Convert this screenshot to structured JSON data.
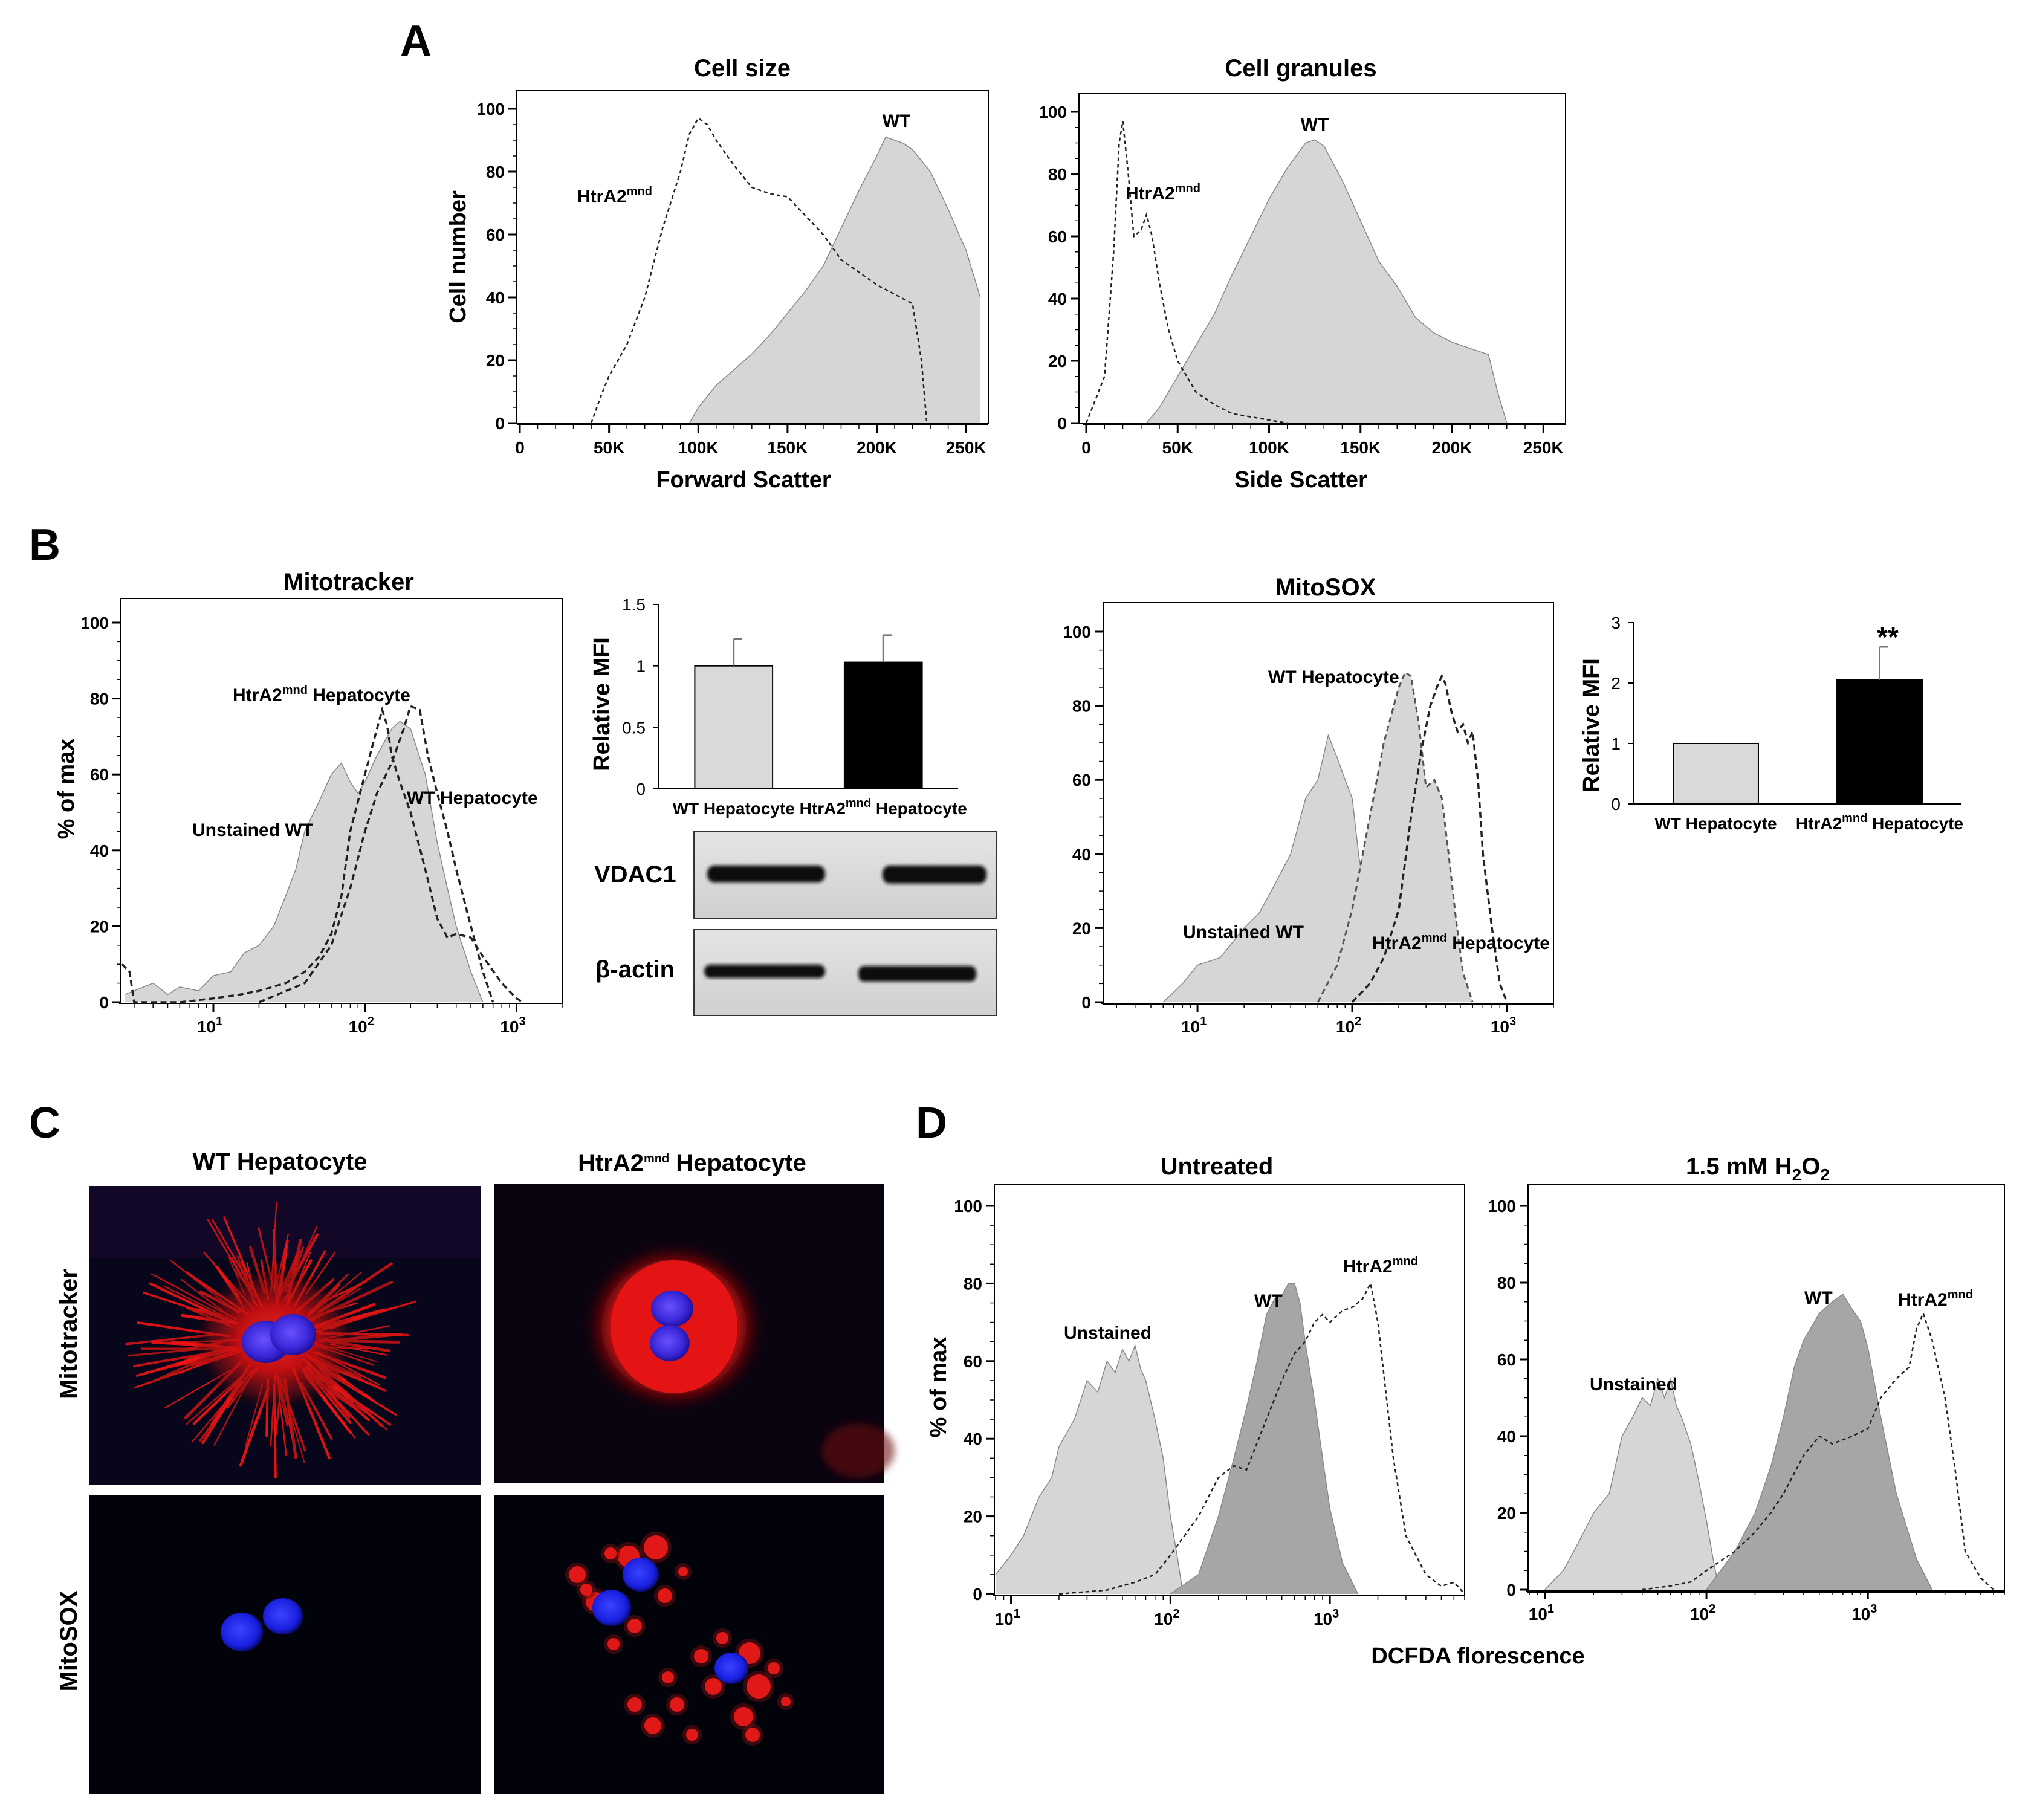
{
  "panels": {
    "A": {
      "letter": "A"
    },
    "B": {
      "letter": "B"
    },
    "C": {
      "letter": "C"
    },
    "D": {
      "letter": "D"
    }
  },
  "colors": {
    "fill_light": "#d6d6d6",
    "fill_dark": "#a6a6a6",
    "line": "#222222",
    "cell_red": "#e01010",
    "nucleus_blue": "#4030d8",
    "bar_wt": "#d9d9d9",
    "bar_ko": "#000000"
  },
  "chart_data": [
    {
      "id": "cell-size",
      "type": "area",
      "title": "Cell size",
      "xlabel": "Forward Scatter",
      "ylabel": "Cell number",
      "xlim": [
        0,
        262144
      ],
      "ylim": [
        0,
        100
      ],
      "xticks": [
        0,
        50000,
        100000,
        150000,
        200000,
        250000
      ],
      "xtick_labels": [
        "0",
        "50K",
        "100K",
        "150K",
        "200K",
        "250K"
      ],
      "yticks": [
        0,
        20,
        40,
        60,
        80,
        100
      ],
      "label_wt": "WT",
      "label_ko": "HtrA2",
      "label_ko_sup": "mnd",
      "series": [
        {
          "name": "WT",
          "style": "filled",
          "x": [
            95000,
            100000,
            110000,
            120000,
            130000,
            140000,
            150000,
            160000,
            170000,
            180000,
            190000,
            200000,
            205000,
            210000,
            215000,
            220000,
            230000,
            240000,
            250000,
            258000
          ],
          "y": [
            0,
            5,
            12,
            17,
            22,
            28,
            35,
            42,
            50,
            62,
            74,
            85,
            91,
            90,
            89,
            87,
            80,
            68,
            55,
            40
          ]
        },
        {
          "name": "HtrA2mnd",
          "style": "dashed",
          "x": [
            40000,
            45000,
            50000,
            60000,
            70000,
            80000,
            90000,
            95000,
            100000,
            105000,
            110000,
            120000,
            130000,
            140000,
            150000,
            160000,
            170000,
            180000,
            190000,
            200000,
            210000,
            220000,
            225000,
            228000
          ],
          "y": [
            0,
            8,
            15,
            25,
            40,
            62,
            80,
            92,
            97,
            95,
            90,
            82,
            75,
            73,
            72,
            66,
            60,
            52,
            48,
            44,
            41,
            38,
            20,
            0
          ]
        }
      ]
    },
    {
      "id": "cell-granules",
      "type": "area",
      "title": "Cell granules",
      "xlabel": "Side Scatter",
      "ylabel": "",
      "xlim": [
        0,
        262144
      ],
      "ylim": [
        0,
        100
      ],
      "xticks": [
        0,
        50000,
        100000,
        150000,
        200000,
        250000
      ],
      "xtick_labels": [
        "0",
        "50K",
        "100K",
        "150K",
        "200K",
        "250K"
      ],
      "yticks": [
        0,
        20,
        40,
        60,
        80,
        100
      ],
      "label_wt": "WT",
      "label_ko": "HtrA2",
      "label_ko_sup": "mnd",
      "series": [
        {
          "name": "WT",
          "style": "filled",
          "x": [
            33000,
            40000,
            50000,
            60000,
            70000,
            80000,
            90000,
            100000,
            110000,
            120000,
            125000,
            130000,
            140000,
            150000,
            160000,
            170000,
            180000,
            190000,
            200000,
            210000,
            220000,
            225000,
            230000
          ],
          "y": [
            0,
            5,
            15,
            25,
            35,
            48,
            60,
            72,
            82,
            90,
            91,
            89,
            78,
            65,
            52,
            44,
            34,
            29,
            26,
            24,
            22,
            10,
            0
          ]
        },
        {
          "name": "HtrA2mnd",
          "style": "dashed",
          "x": [
            0,
            10000,
            15000,
            18000,
            20000,
            23000,
            26000,
            30000,
            33000,
            36000,
            40000,
            45000,
            50000,
            55000,
            60000,
            70000,
            80000,
            90000,
            100000,
            110000
          ],
          "y": [
            0,
            15,
            55,
            90,
            97,
            80,
            60,
            62,
            67,
            60,
            45,
            30,
            20,
            15,
            10,
            6,
            3,
            2,
            1,
            0
          ]
        }
      ]
    },
    {
      "id": "mitotracker",
      "type": "area",
      "title": "Mitotracker",
      "ylabel": "% of max",
      "xscale": "log",
      "xlim": [
        2.5,
        2000
      ],
      "ylim": [
        0,
        100
      ],
      "xticks": [
        10,
        100,
        1000
      ],
      "yticks": [
        0,
        20,
        40,
        60,
        80,
        100
      ],
      "label_unstained": "Unstained WT",
      "label_wt": "WT Hepatocyte",
      "label_ko_a": "HtrA2",
      "label_ko_sup": "mnd",
      "label_ko_b": " Hepatocyte",
      "series": [
        {
          "name": "Unstained WT",
          "style": "filled",
          "x": [
            2.6,
            3,
            4,
            5,
            6,
            8,
            10,
            13,
            16,
            20,
            25,
            30,
            35,
            40,
            50,
            60,
            70,
            80,
            90,
            100,
            120,
            150,
            170,
            200,
            250,
            300,
            350,
            400,
            500,
            600
          ],
          "y": [
            2,
            3,
            5,
            2,
            4,
            3,
            7,
            8,
            13,
            15,
            20,
            28,
            35,
            45,
            53,
            60,
            63,
            58,
            55,
            58,
            65,
            72,
            74,
            72,
            60,
            42,
            30,
            20,
            8,
            0
          ]
        },
        {
          "name": "WT Hepatocyte",
          "style": "dashed",
          "x": [
            20,
            40,
            60,
            80,
            100,
            120,
            150,
            180,
            200,
            230,
            260,
            300,
            350,
            400,
            500,
            600,
            700
          ],
          "y": [
            0,
            5,
            15,
            30,
            45,
            55,
            63,
            72,
            78,
            77,
            65,
            55,
            45,
            35,
            20,
            8,
            0
          ]
        },
        {
          "name": "HtrA2mnd Hepatocyte",
          "style": "dashed",
          "x": [
            2.5,
            2.8,
            3,
            4,
            6,
            10,
            15,
            20,
            30,
            40,
            50,
            60,
            70,
            80,
            100,
            120,
            130,
            140,
            150,
            170,
            200,
            250,
            300,
            350,
            400,
            500,
            600,
            800,
            1000,
            1100
          ],
          "y": [
            10,
            8,
            0,
            0,
            0,
            1,
            2,
            3,
            5,
            8,
            12,
            18,
            28,
            45,
            60,
            72,
            77,
            73,
            65,
            58,
            50,
            35,
            22,
            17,
            18,
            17,
            12,
            5,
            1,
            0
          ]
        }
      ]
    },
    {
      "id": "mitotracker-mfi",
      "type": "bar",
      "ylabel": "Relative MFI",
      "ylim": [
        0,
        1.5
      ],
      "yticks": [
        0,
        0.5,
        1,
        1.5
      ],
      "ytick_labels": [
        "0",
        "0.5",
        "1",
        "1.5"
      ],
      "categories": [
        "WT Hepatocyte",
        "HtrA2mnd Hepatocyte"
      ],
      "category_labels": [
        {
          "a": "WT Hepatocyte",
          "sup": "",
          "b": ""
        },
        {
          "a": "HtrA2",
          "sup": "mnd",
          "b": " Hepatocyte"
        }
      ],
      "values": [
        1.0,
        1.03
      ],
      "errors": [
        0.22,
        0.22
      ]
    },
    {
      "id": "mitosox",
      "type": "area",
      "title": "MitoSOX",
      "xscale": "log",
      "xlim": [
        2.5,
        2000
      ],
      "ylim": [
        0,
        100
      ],
      "xticks": [
        10,
        100,
        1000
      ],
      "yticks": [
        0,
        20,
        40,
        60,
        80,
        100
      ],
      "label_unstained": "Unstained WT",
      "label_wt": "WT Hepatocyte",
      "label_ko_a": "HtrA2",
      "label_ko_sup": "mnd",
      "label_ko_b": " Hepatocyte",
      "series": [
        {
          "name": "Unstained WT",
          "style": "filled",
          "x": [
            6,
            8,
            10,
            14,
            20,
            25,
            30,
            40,
            50,
            60,
            70,
            80,
            90,
            100,
            110,
            130,
            150,
            160
          ],
          "y": [
            0,
            5,
            10,
            12,
            20,
            24,
            30,
            40,
            55,
            60,
            72,
            66,
            60,
            55,
            40,
            20,
            5,
            0
          ]
        },
        {
          "name": "WT Hepatocyte",
          "style": "filled-dashed",
          "x": [
            60,
            80,
            100,
            130,
            160,
            200,
            220,
            240,
            270,
            300,
            340,
            380,
            420,
            470,
            520,
            600
          ],
          "y": [
            0,
            10,
            25,
            50,
            70,
            85,
            89,
            88,
            75,
            58,
            60,
            55,
            40,
            22,
            8,
            0
          ]
        },
        {
          "name": "HtrA2mnd Hepatocyte",
          "style": "dashed",
          "x": [
            100,
            130,
            160,
            200,
            240,
            280,
            320,
            360,
            380,
            400,
            440,
            480,
            520,
            560,
            600,
            650,
            700,
            800,
            900,
            1000
          ],
          "y": [
            0,
            5,
            12,
            25,
            50,
            68,
            80,
            86,
            88,
            86,
            78,
            73,
            75,
            70,
            73,
            60,
            40,
            20,
            5,
            0
          ]
        }
      ]
    },
    {
      "id": "mitosox-mfi",
      "type": "bar",
      "ylabel": "Relative MFI",
      "ylim": [
        0,
        3
      ],
      "yticks": [
        0,
        1,
        2,
        3
      ],
      "ytick_labels": [
        "0",
        "1",
        "2",
        "3"
      ],
      "categories": [
        "WT Hepatocyte",
        "HtrA2mnd Hepatocyte"
      ],
      "category_labels": [
        {
          "a": "WT Hepatocyte",
          "sup": "",
          "b": ""
        },
        {
          "a": "HtrA2",
          "sup": "mnd",
          "b": " Hepatocyte"
        }
      ],
      "values": [
        1.0,
        2.05
      ],
      "errors": [
        0,
        0.55
      ],
      "annotation": "**"
    },
    {
      "id": "dcfda-untreated",
      "type": "area",
      "title": "Untreated",
      "ylabel": "% of max",
      "xscale": "log",
      "xlim": [
        8,
        7000
      ],
      "ylim": [
        0,
        100
      ],
      "xticks": [
        10,
        100,
        1000
      ],
      "yticks": [
        0,
        20,
        40,
        60,
        80,
        100
      ],
      "label_unstained": "Unstained",
      "label_wt": "WT",
      "label_ko": "HtrA2",
      "label_ko_sup": "mnd",
      "series": [
        {
          "name": "Unstained",
          "style": "filled-light",
          "x": [
            8,
            10,
            12,
            15,
            18,
            20,
            25,
            30,
            35,
            40,
            45,
            50,
            55,
            60,
            65,
            70,
            80,
            90,
            100,
            110,
            120
          ],
          "y": [
            5,
            10,
            15,
            25,
            30,
            38,
            45,
            55,
            52,
            60,
            57,
            63,
            60,
            64,
            58,
            55,
            45,
            35,
            20,
            10,
            0
          ]
        },
        {
          "name": "WT",
          "style": "filled-dark",
          "x": [
            100,
            150,
            200,
            250,
            300,
            350,
            400,
            450,
            500,
            550,
            600,
            650,
            700,
            800,
            900,
            1000,
            1200,
            1500
          ],
          "y": [
            0,
            5,
            20,
            35,
            48,
            60,
            72,
            76,
            77,
            80,
            80,
            75,
            65,
            50,
            35,
            22,
            8,
            0
          ]
        },
        {
          "name": "HtrA2mnd",
          "style": "dashed",
          "x": [
            20,
            40,
            60,
            80,
            100,
            150,
            200,
            250,
            300,
            400,
            500,
            600,
            700,
            800,
            900,
            1000,
            1200,
            1400,
            1600,
            1800,
            2000,
            2500,
            3000,
            4000,
            5000,
            6000,
            7000
          ],
          "y": [
            0,
            1,
            3,
            5,
            10,
            20,
            30,
            33,
            32,
            45,
            55,
            62,
            65,
            70,
            72,
            70,
            73,
            74,
            76,
            80,
            70,
            35,
            15,
            5,
            2,
            3,
            0
          ]
        }
      ]
    },
    {
      "id": "dcfda-h2o2",
      "type": "area",
      "title_a": "1.5 mM H",
      "title_sub1": "2",
      "title_b": "O",
      "title_sub2": "2",
      "xlabel": "DCFDA florescence",
      "xscale": "log",
      "xlim": [
        8,
        7000
      ],
      "ylim": [
        0,
        100
      ],
      "xticks": [
        10,
        100,
        1000
      ],
      "yticks": [
        0,
        20,
        40,
        60,
        80,
        100
      ],
      "label_unstained": "Unstained",
      "label_wt": "WT",
      "label_ko": "HtrA2",
      "label_ko_sup": "mnd",
      "series": [
        {
          "name": "Unstained",
          "style": "filled-light",
          "x": [
            10,
            13,
            16,
            20,
            25,
            30,
            35,
            40,
            45,
            50,
            55,
            60,
            65,
            70,
            80,
            90,
            100,
            110,
            120
          ],
          "y": [
            0,
            5,
            12,
            20,
            25,
            40,
            45,
            50,
            48,
            55,
            50,
            55,
            48,
            45,
            38,
            28,
            18,
            8,
            0
          ]
        },
        {
          "name": "WT",
          "style": "filled-dark",
          "x": [
            100,
            150,
            200,
            250,
            300,
            350,
            400,
            500,
            600,
            700,
            800,
            900,
            1000,
            1200,
            1500,
            2000,
            2500
          ],
          "y": [
            0,
            10,
            20,
            32,
            45,
            58,
            65,
            72,
            75,
            77,
            73,
            70,
            63,
            45,
            25,
            8,
            0
          ]
        },
        {
          "name": "HtrA2mnd",
          "style": "dashed",
          "x": [
            40,
            60,
            80,
            100,
            150,
            200,
            250,
            300,
            400,
            500,
            600,
            800,
            1000,
            1200,
            1500,
            1800,
            2000,
            2200,
            2500,
            3000,
            3500,
            4000,
            5000,
            6000
          ],
          "y": [
            0,
            1,
            2,
            5,
            10,
            15,
            20,
            25,
            35,
            40,
            38,
            40,
            42,
            50,
            55,
            58,
            68,
            72,
            65,
            50,
            30,
            10,
            3,
            0
          ]
        }
      ]
    }
  ],
  "western": {
    "label_vdac1": "VDAC1",
    "label_actin": "β-actin"
  },
  "micro": {
    "col1": "WT Hepatocyte",
    "col2_a": "HtrA2",
    "col2_sup": "mnd",
    "col2_b": " Hepatocyte",
    "row1": "Mitotracker",
    "row2": "MitoSOX"
  }
}
